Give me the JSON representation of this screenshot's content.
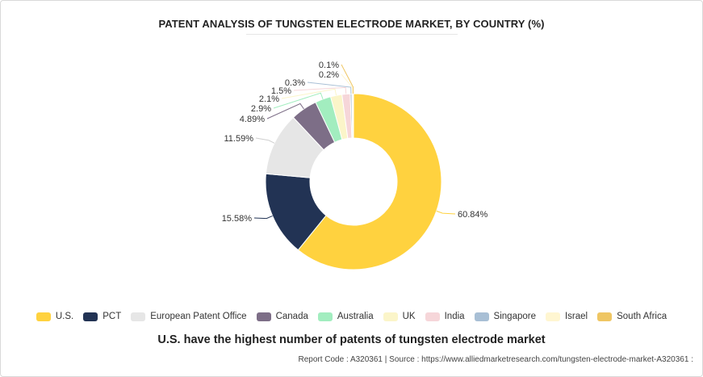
{
  "chart_data": {
    "type": "pie",
    "title": "PATENT ANALYSIS OF TUNGSTEN ELECTRODE MARKET, BY COUNTRY (%)",
    "categories": [
      "U.S.",
      "PCT",
      "European Patent Office",
      "Canada",
      "Australia",
      "UK",
      "India",
      "Singapore",
      "Israel",
      "South Africa"
    ],
    "values": [
      60.84,
      15.58,
      11.59,
      4.89,
      2.9,
      2.1,
      1.5,
      0.3,
      0.2,
      0.1
    ],
    "value_labels": [
      "60.84%",
      "15.58%",
      "11.59%",
      "4.89%",
      "2.9%",
      "2.1%",
      "1.5%",
      "0.3%",
      "0.2%",
      "0.1%"
    ],
    "colors": [
      "#FFD23F",
      "#223354",
      "#E6E6E6",
      "#7D6E87",
      "#A2EDBF",
      "#FBF5C9",
      "#F6D6D9",
      "#A8BFD5",
      "#FFF6D1",
      "#EFC663"
    ],
    "donut": true,
    "legend_position": "bottom"
  },
  "subtitle": "U.S. have the highest number of patents of tungsten electrode market",
  "source": "Report Code : A320361  |  Source : https://www.alliedmarketresearch.com/tungsten-electrode-market-A320361 :"
}
